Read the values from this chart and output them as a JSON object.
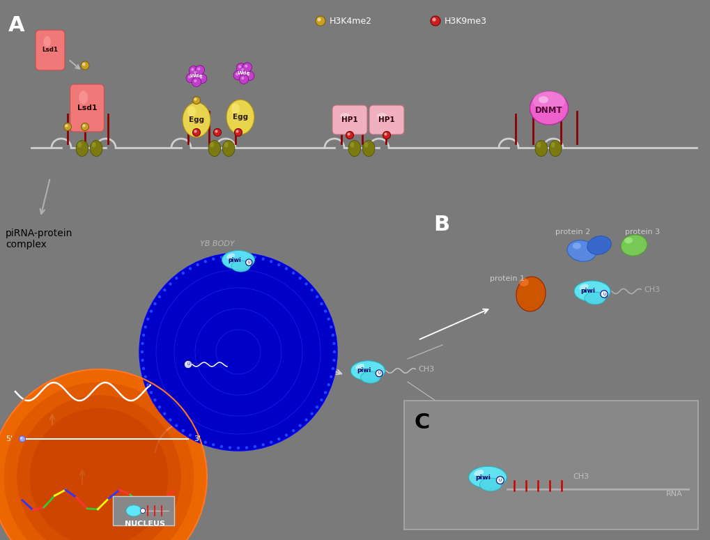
{
  "bg_color": "#7a7a7a",
  "colors": {
    "bg": "#7a7a7a",
    "lsd1": "#f08080",
    "egg": "#e8d44d",
    "wde": "#cc44cc",
    "hp1": "#f0a0b0",
    "dnmt": "#f060c0",
    "piwi_blob": "#50e0f0",
    "protein1": "#cc5500",
    "protein2": "#5080d0",
    "protein3": "#80c850",
    "nucleus_fill": "#bb3300",
    "yb_body": "#0000cc",
    "h3k4me2": "#c8a020",
    "h3k9me3": "#cc2020",
    "nucleosome": "#8b8b20",
    "dna_line": "#c0c0c0",
    "white": "#ffffff",
    "dark_red": "#8b0000"
  },
  "legend_h3k4me2": "H3K4me2",
  "legend_h3k9me3": "H3K9me3",
  "label_piRNA": "piRNA-protein\ncomplex",
  "label_yb": "YB BODY",
  "label_nucleus": "NUCLEUS",
  "label_piwi": "piwi",
  "label_ch3": "CH3",
  "label_rna": "RNA",
  "label_5p": "5'",
  "label_3p": "3'",
  "label_protein1": "protein 1",
  "label_protein2": "protein 2",
  "label_protein3": "protein 3",
  "label_lsd1": "Lsd1",
  "label_wde": "Wde",
  "label_egg": "Egg",
  "label_hp1": "HP1",
  "label_dnmt": "DNMT"
}
